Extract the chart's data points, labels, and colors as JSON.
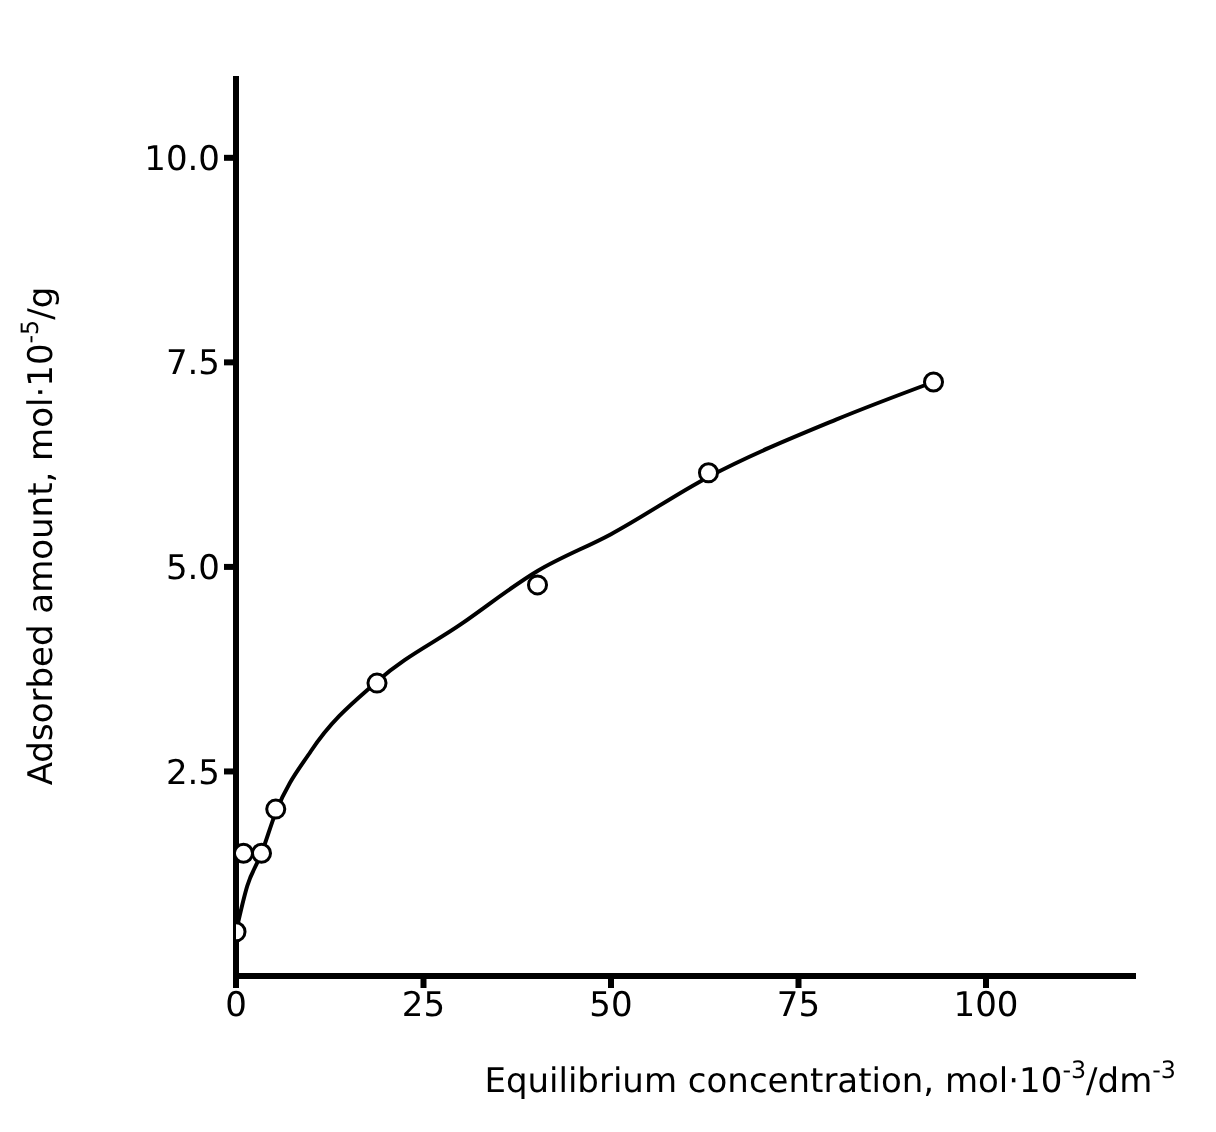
{
  "chart_data": {
    "type": "scatter",
    "xlabel": "Equilibrium concentration, mol·10$^{-3}$/dm$^{-3}$",
    "ylabel": "Adsorbed amount, mol·10$^{-5}$/g",
    "xlim": [
      0,
      120
    ],
    "ylim": [
      0,
      11
    ],
    "xticks": [
      0,
      25,
      50,
      75,
      100
    ],
    "yticks": [
      {
        "value": 2.5,
        "label": "2.5"
      },
      {
        "value": 5,
        "label": "5.0"
      },
      {
        "value": 7.5,
        "label": "7.5"
      },
      {
        "value": 10,
        "label": "10.0"
      }
    ],
    "grid": false,
    "legend": false,
    "series": [
      {
        "color": "#000000",
        "marker": "circle",
        "x": [
          0,
          1,
          3.4,
          5.3,
          18.8,
          40.2,
          63,
          93
        ],
        "values": [
          0.54,
          1.5,
          1.5,
          2.04,
          3.58,
          4.78,
          6.15,
          7.26
        ]
      },
      {
        "type": "line",
        "color": "#000000",
        "marker": "none",
        "line_style": "solid",
        "x": [
          0,
          1.5,
          3.4,
          5.3,
          10,
          18.8,
          30,
          40.2,
          50,
          63,
          80,
          93
        ],
        "values": [
          0.54,
          1.1,
          1.5,
          2.0,
          2.75,
          3.6,
          4.3,
          4.95,
          5.4,
          6.1,
          6.8,
          7.26
        ]
      }
    ]
  }
}
